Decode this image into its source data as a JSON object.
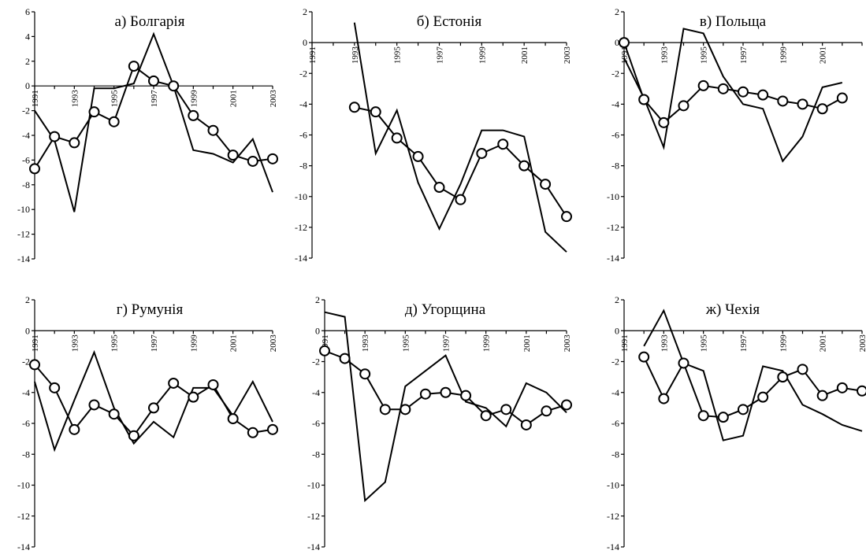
{
  "chart_data": [
    {
      "type": "line",
      "title": "а) Болгарія",
      "x": [
        1991,
        1992,
        1993,
        1994,
        1995,
        1996,
        1997,
        1998,
        1999,
        2000,
        2001,
        2002,
        2003
      ],
      "xticks": [
        1991,
        1993,
        1995,
        1997,
        1999,
        2001,
        2003
      ],
      "ylim": [
        -14,
        6
      ],
      "yticks": [
        6,
        4,
        2,
        0,
        -2,
        -4,
        -6,
        -8,
        -10,
        -12,
        -14
      ],
      "series": [
        {
          "marker": "none",
          "values": [
            -2.0,
            -4.4,
            -10.2,
            -0.2,
            -0.2,
            0.2,
            4.2,
            0.0,
            -5.2,
            -5.5,
            -6.2,
            -4.3,
            -8.6
          ]
        },
        {
          "marker": "circle",
          "values": [
            -6.7,
            -4.1,
            -4.6,
            -2.1,
            -2.9,
            1.6,
            0.4,
            0.0,
            -2.4,
            -3.6,
            -5.6,
            -6.1,
            -5.9
          ]
        }
      ]
    },
    {
      "type": "line",
      "title": "б)  Естонія",
      "x": [
        1991,
        1992,
        1993,
        1994,
        1995,
        1996,
        1997,
        1998,
        1999,
        2000,
        2001,
        2002,
        2003
      ],
      "xticks": [
        1991,
        1993,
        1995,
        1997,
        1999,
        2001,
        2003
      ],
      "ylim": [
        -14,
        2
      ],
      "yticks": [
        2,
        0,
        -2,
        -4,
        -6,
        -8,
        -10,
        -12,
        -14
      ],
      "series": [
        {
          "marker": "none",
          "values": [
            null,
            null,
            1.3,
            -7.2,
            -4.4,
            -9.1,
            -12.1,
            -9.2,
            -5.7,
            -5.7,
            -6.1,
            -12.3,
            -13.6
          ]
        },
        {
          "marker": "circle",
          "values": [
            null,
            null,
            -4.2,
            -4.5,
            -6.2,
            -7.4,
            -9.4,
            -10.2,
            -7.2,
            -6.6,
            -8.0,
            -9.2,
            -11.3
          ]
        }
      ]
    },
    {
      "type": "line",
      "title": "в) Польща",
      "x": [
        1991,
        1992,
        1993,
        1994,
        1995,
        1996,
        1997,
        1998,
        1999,
        2000,
        2001,
        2002,
        2003
      ],
      "xticks": [
        1991,
        1993,
        1995,
        1997,
        1999,
        2001
      ],
      "ylim": [
        -14,
        2
      ],
      "yticks": [
        2,
        0,
        -2,
        -4,
        -6,
        -8,
        -10,
        -12,
        -14
      ],
      "series": [
        {
          "marker": "none",
          "values": [
            -1.0,
            -3.6,
            -6.8,
            0.9,
            0.6,
            -2.2,
            -4.0,
            -4.3,
            -7.7,
            -6.1,
            -2.9,
            -2.6,
            null
          ]
        },
        {
          "marker": "circle",
          "values": [
            0.0,
            -3.7,
            -5.2,
            -4.1,
            -2.8,
            -3.0,
            -3.2,
            -3.4,
            -3.8,
            -4.0,
            -4.3,
            -3.6,
            null
          ]
        }
      ]
    },
    {
      "type": "line",
      "title": "г)  Румунія",
      "x": [
        1991,
        1992,
        1993,
        1994,
        1995,
        1996,
        1997,
        1998,
        1999,
        2000,
        2001,
        2002,
        2003
      ],
      "xticks": [
        1991,
        1993,
        1995,
        1997,
        1999,
        2001,
        2003
      ],
      "ylim": [
        -14,
        2
      ],
      "yticks": [
        2,
        0,
        -2,
        -4,
        -6,
        -8,
        -10,
        -12,
        -14
      ],
      "series": [
        {
          "marker": "none",
          "values": [
            -3.3,
            -7.7,
            -4.5,
            -1.4,
            -5.0,
            -7.3,
            -5.9,
            -6.9,
            -3.7,
            -3.7,
            -5.5,
            -3.3,
            -5.9
          ]
        },
        {
          "marker": "circle",
          "values": [
            -2.2,
            -3.7,
            -6.4,
            -4.8,
            -5.4,
            -6.8,
            -5.0,
            -3.4,
            -4.3,
            -3.5,
            -5.7,
            -6.6,
            -6.4
          ]
        }
      ]
    },
    {
      "type": "line",
      "title": "д)  Угорщина",
      "x": [
        1991,
        1992,
        1993,
        1994,
        1995,
        1996,
        1997,
        1998,
        1999,
        2000,
        2001,
        2002,
        2003
      ],
      "xticks": [
        1991,
        1993,
        1995,
        1997,
        1999,
        2001,
        2003
      ],
      "ylim": [
        -14,
        2
      ],
      "yticks": [
        2,
        0,
        -2,
        -4,
        -6,
        -8,
        -10,
        -12,
        -14
      ],
      "series": [
        {
          "marker": "none",
          "values": [
            1.2,
            0.9,
            -11.0,
            -9.8,
            -3.6,
            -2.6,
            -1.6,
            -4.6,
            -5.0,
            -6.2,
            -3.4,
            -4.0,
            -5.3
          ]
        },
        {
          "marker": "circle",
          "values": [
            -1.3,
            -1.8,
            -2.8,
            -5.1,
            -5.1,
            -4.1,
            -4.0,
            -4.2,
            -5.5,
            -5.1,
            -6.1,
            -5.2,
            -4.8
          ]
        }
      ]
    },
    {
      "type": "line",
      "title": "ж) Чехія",
      "x": [
        1991,
        1992,
        1993,
        1994,
        1995,
        1996,
        1997,
        1998,
        1999,
        2000,
        2001,
        2002,
        2003
      ],
      "xticks": [
        1991,
        1993,
        1995,
        1997,
        1999,
        2001,
        2003
      ],
      "ylim": [
        -14,
        2
      ],
      "yticks": [
        2,
        0,
        -2,
        -4,
        -6,
        -8,
        -10,
        -12,
        -14
      ],
      "series": [
        {
          "marker": "none",
          "values": [
            null,
            -1.0,
            1.3,
            -2.1,
            -2.6,
            -7.1,
            -6.8,
            -2.3,
            -2.6,
            -4.8,
            -5.4,
            -6.1,
            -6.5
          ]
        },
        {
          "marker": "circle",
          "values": [
            null,
            -1.7,
            -4.4,
            -2.1,
            -5.5,
            -5.6,
            -5.1,
            -4.3,
            -3.0,
            -2.5,
            -4.2,
            -3.7,
            -3.9
          ]
        }
      ]
    }
  ]
}
